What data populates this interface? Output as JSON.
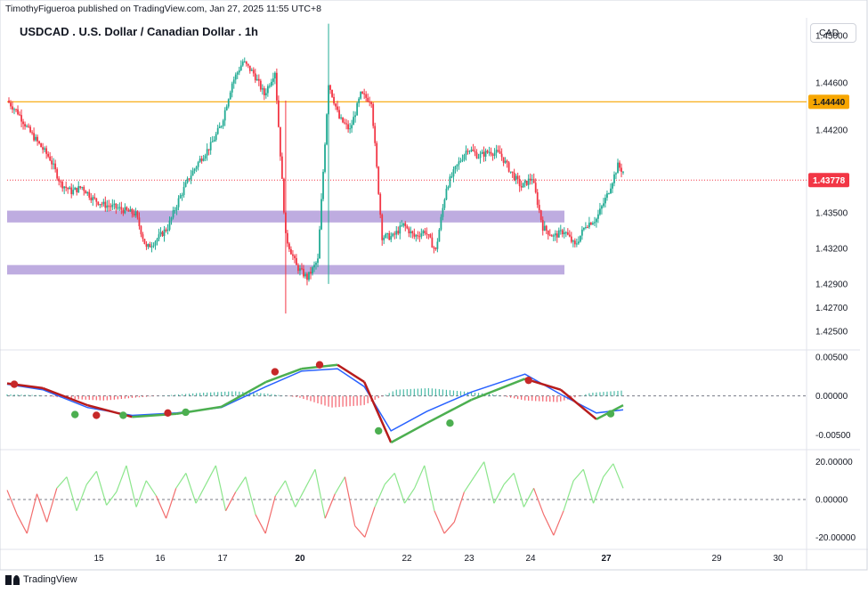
{
  "header": {
    "published_line": "TimothyFigueroa published on TradingView.com, Jan 27, 2025 11:55 UTC+8",
    "title": "USDCAD . U.S. Dollar / Canadian Dollar . 1h",
    "currency_button": "CAD"
  },
  "footer": {
    "brand": "TradingView"
  },
  "colors": {
    "up": "#22ab94",
    "down": "#f23645",
    "resistance": "#f7a600",
    "zone": "#b39ddb",
    "macd": "#2962ff",
    "signal_up": "#4caf50",
    "signal_down": "#b71c1c",
    "osc_up": "#8ce68c",
    "osc_down": "#f26d6d",
    "last_price_badge": "#f23645"
  },
  "chart_data": [
    {
      "type": "candlestick",
      "title": "USDCAD . U.S. Dollar / Canadian Dollar . 1h",
      "ylim": [
        1.4235,
        1.4515
      ],
      "y_ticks": [
        "1.45000",
        "1.44600",
        "1.44200",
        "1.43500",
        "1.43200",
        "1.42900",
        "1.42700",
        "1.42500"
      ],
      "x_ticks": [
        "15",
        "16",
        "17",
        "20",
        "22",
        "23",
        "24",
        "27",
        "29",
        "30"
      ],
      "horizontal_level": 1.4444,
      "horizontal_level_label": "1.44440",
      "last_price": 1.43778,
      "last_price_label": "1.43778",
      "zones": [
        {
          "from": 1.4342,
          "to": 1.4352,
          "x_start": "14",
          "x_end": "24"
        },
        {
          "from": 1.4298,
          "to": 1.4306,
          "x_start": "14",
          "x_end": "24"
        }
      ],
      "path": [
        [
          0,
          1.4445
        ],
        [
          6,
          1.4435
        ],
        [
          12,
          1.442
        ],
        [
          18,
          1.4408
        ],
        [
          24,
          1.4396
        ],
        [
          30,
          1.4375
        ],
        [
          36,
          1.4368
        ],
        [
          42,
          1.4372
        ],
        [
          48,
          1.4362
        ],
        [
          54,
          1.4357
        ],
        [
          60,
          1.4355
        ],
        [
          66,
          1.4352
        ],
        [
          72,
          1.4349
        ],
        [
          78,
          1.432
        ],
        [
          84,
          1.4328
        ],
        [
          90,
          1.4338
        ],
        [
          96,
          1.4361
        ],
        [
          102,
          1.438
        ],
        [
          108,
          1.4395
        ],
        [
          114,
          1.4407
        ],
        [
          120,
          1.4425
        ],
        [
          126,
          1.446
        ],
        [
          132,
          1.4478
        ],
        [
          138,
          1.4468
        ],
        [
          144,
          1.445
        ],
        [
          150,
          1.447
        ],
        [
          156,
          1.433
        ],
        [
          162,
          1.4305
        ],
        [
          168,
          1.4295
        ],
        [
          174,
          1.431
        ],
        [
          180,
          1.446
        ],
        [
          186,
          1.443
        ],
        [
          192,
          1.442
        ],
        [
          198,
          1.445
        ],
        [
          204,
          1.4445
        ],
        [
          210,
          1.433
        ],
        [
          216,
          1.433
        ],
        [
          222,
          1.434
        ],
        [
          228,
          1.433
        ],
        [
          234,
          1.4335
        ],
        [
          240,
          1.4318
        ],
        [
          246,
          1.4372
        ],
        [
          252,
          1.439
        ],
        [
          258,
          1.4405
        ],
        [
          264,
          1.4398
        ],
        [
          270,
          1.4402
        ],
        [
          276,
          1.44
        ],
        [
          282,
          1.4385
        ],
        [
          288,
          1.4372
        ],
        [
          294,
          1.438
        ],
        [
          300,
          1.4338
        ],
        [
          306,
          1.433
        ],
        [
          312,
          1.4335
        ],
        [
          318,
          1.4322
        ],
        [
          324,
          1.434
        ],
        [
          330,
          1.4345
        ],
        [
          336,
          1.4365
        ],
        [
          342,
          1.439
        ],
        [
          345,
          1.4385
        ]
      ]
    },
    {
      "type": "line",
      "title": "MACD",
      "ylim": [
        -0.0068,
        0.0058
      ],
      "y_ticks": [
        "0.00500",
        "0.00000",
        "-0.00500"
      ],
      "zero_line": 0,
      "series": [
        {
          "values": [
            [
              0,
              0.0015
            ],
            [
              20,
              0.0008
            ],
            [
              45,
              -0.0015
            ],
            [
              70,
              -0.0025
            ],
            [
              95,
              -0.0022
            ],
            [
              120,
              -0.0015
            ],
            [
              145,
              0.0012
            ],
            [
              165,
              0.0032
            ],
            [
              185,
              0.0035
            ],
            [
              200,
              0.0012
            ],
            [
              215,
              -0.0045
            ],
            [
              235,
              -0.002
            ],
            [
              260,
              0.0005
            ],
            [
              290,
              0.0028
            ],
            [
              310,
              0.0002
            ],
            [
              330,
              -0.0022
            ],
            [
              345,
              -0.0018
            ]
          ]
        },
        {
          "values": [
            [
              0,
              0.0016
            ],
            [
              20,
              0.001
            ],
            [
              45,
              -0.0012
            ],
            [
              70,
              -0.0027
            ],
            [
              95,
              -0.0023
            ],
            [
              120,
              -0.0014
            ],
            [
              145,
              0.0018
            ],
            [
              165,
              0.0035
            ],
            [
              185,
              0.004
            ],
            [
              200,
              0.0018
            ],
            [
              215,
              -0.006
            ],
            [
              235,
              -0.0035
            ],
            [
              260,
              -0.0005
            ],
            [
              290,
              0.0022
            ],
            [
              310,
              0.0008
            ],
            [
              330,
              -0.003
            ],
            [
              345,
              -0.0012
            ]
          ]
        }
      ],
      "histogram": [
        0.0002,
        0.0001,
        -0.0004,
        -0.0006,
        -0.0002,
        0.0001,
        0.0004,
        0.0006,
        0.0003,
        -0.0002,
        -0.0015,
        -0.0012,
        0.0008,
        0.001,
        0.0006,
        0.0002,
        -0.0006,
        -0.0008,
        0.0004,
        0.0007
      ]
    },
    {
      "type": "line",
      "title": "Oscillator",
      "ylim": [
        -26,
        26
      ],
      "y_ticks": [
        "20.00000",
        "0.00000",
        "-20.00000"
      ],
      "zero_line": 0,
      "series": [
        {
          "values": [
            5,
            -8,
            -18,
            3,
            -12,
            6,
            12,
            -6,
            8,
            15,
            -3,
            4,
            18,
            -4,
            10,
            2,
            -10,
            6,
            14,
            -2,
            8,
            18,
            -6,
            4,
            12,
            -8,
            -18,
            2,
            10,
            -4,
            6,
            16,
            -10,
            3,
            12,
            -14,
            -20,
            -4,
            8,
            14,
            -2,
            6,
            18,
            -6,
            -18,
            -12,
            4,
            12,
            20,
            -2,
            8,
            14,
            -4,
            6,
            -8,
            -19,
            -6,
            10,
            16,
            -2,
            12,
            19,
            6
          ]
        }
      ]
    }
  ]
}
